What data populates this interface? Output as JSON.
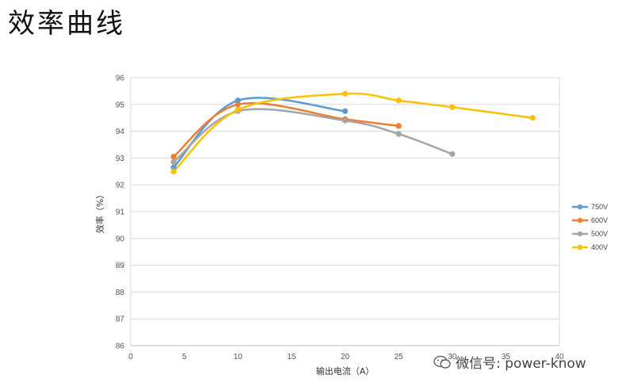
{
  "page": {
    "title": "效率曲线"
  },
  "watermark": {
    "text": "微信号: power-know"
  },
  "chart_data": {
    "type": "line",
    "title": "",
    "xlabel": "输出电流（A）",
    "ylabel": "效率（%）",
    "xlim": [
      0,
      40
    ],
    "ylim": [
      86,
      96
    ],
    "x_ticks": [
      0,
      5,
      10,
      15,
      20,
      25,
      30,
      35,
      40
    ],
    "y_ticks": [
      86,
      87,
      88,
      89,
      90,
      91,
      92,
      93,
      94,
      95,
      96
    ],
    "grid": "horizontal",
    "legend_position": "right",
    "smooth": true,
    "series": [
      {
        "name": "750V",
        "color": "#5b9bd5",
        "x": [
          4,
          10,
          20
        ],
        "y": [
          92.65,
          95.15,
          94.75
        ]
      },
      {
        "name": "600V",
        "color": "#ed7d31",
        "x": [
          4,
          10,
          20,
          25
        ],
        "y": [
          93.05,
          95.0,
          94.45,
          94.2
        ]
      },
      {
        "name": "500V",
        "color": "#a5a5a5",
        "x": [
          4,
          10,
          20,
          25,
          30
        ],
        "y": [
          92.85,
          94.75,
          94.4,
          93.9,
          93.15
        ]
      },
      {
        "name": "400V",
        "color": "#ffc000",
        "x": [
          4,
          10,
          20,
          25,
          30,
          37.5
        ],
        "y": [
          92.5,
          94.8,
          95.4,
          95.15,
          94.9,
          94.5
        ]
      }
    ]
  }
}
